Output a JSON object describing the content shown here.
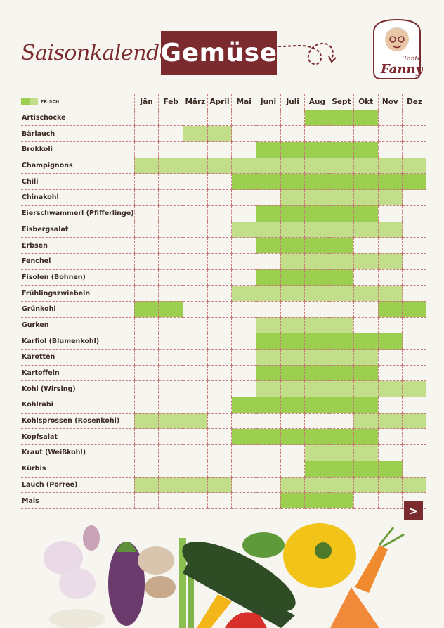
{
  "header": {
    "script_title": "Saisonkalender",
    "main_title": "Gemüse",
    "logo_line1": "Tante",
    "logo_line2": "Fanny"
  },
  "legend": {
    "label": "FRISCH"
  },
  "months": [
    "Jän",
    "Feb",
    "März",
    "April",
    "Mai",
    "Juni",
    "Juli",
    "Aug",
    "Sept",
    "Okt",
    "Nov",
    "Dez"
  ],
  "vegetables": [
    {
      "name": "Artischocke",
      "cells": "-------fff--"
    },
    {
      "name": "Bärlauch",
      "cells": "--ll--------"
    },
    {
      "name": "Brokkoli",
      "cells": "-----fffff--"
    },
    {
      "name": "Champignons",
      "cells": "llllllllllll"
    },
    {
      "name": "Chili",
      "cells": "----ffffffff"
    },
    {
      "name": "Chinakohl",
      "cells": "------lllll-"
    },
    {
      "name": "Eierschwammerl (Pfifferlinge)",
      "cells": "-----fffff--"
    },
    {
      "name": "Eisbergsalat",
      "cells": "----lllllll-"
    },
    {
      "name": "Erbsen",
      "cells": "-----ffff---"
    },
    {
      "name": "Fenchel",
      "cells": "------lllll-"
    },
    {
      "name": "Fisolen (Bohnen)",
      "cells": "-----ffff---"
    },
    {
      "name": "Frühlingszwiebeln",
      "cells": "----lllllll-"
    },
    {
      "name": "Grünkohl",
      "cells": "ff--------ff"
    },
    {
      "name": "Gurken",
      "cells": "-----llll---"
    },
    {
      "name": "Karfiol (Blumenkohl)",
      "cells": "-----ffffff-"
    },
    {
      "name": "Karotten",
      "cells": "-----lllll--"
    },
    {
      "name": "Kartoffeln",
      "cells": "-----fffff--"
    },
    {
      "name": "Kohl (Wirsing)",
      "cells": "-----lllllll"
    },
    {
      "name": "Kohlrabi",
      "cells": "----ffffff--"
    },
    {
      "name": "Kohlsprossen (Rosenkohl)",
      "cells": "lll------lll"
    },
    {
      "name": "Kopfsalat",
      "cells": "----ffffff--"
    },
    {
      "name": "Kraut (Weißkohl)",
      "cells": "-------lll--"
    },
    {
      "name": "Kürbis",
      "cells": "-------ffff-"
    },
    {
      "name": "Lauch (Porree)",
      "cells": "llll--llllll"
    },
    {
      "name": "Mais",
      "cells": "------fff---"
    }
  ],
  "colors": {
    "brand": "#7b2a2e",
    "fresh": "#9ccf4f",
    "light": "#c3de8a"
  },
  "nav": {
    "next_label": ">"
  }
}
